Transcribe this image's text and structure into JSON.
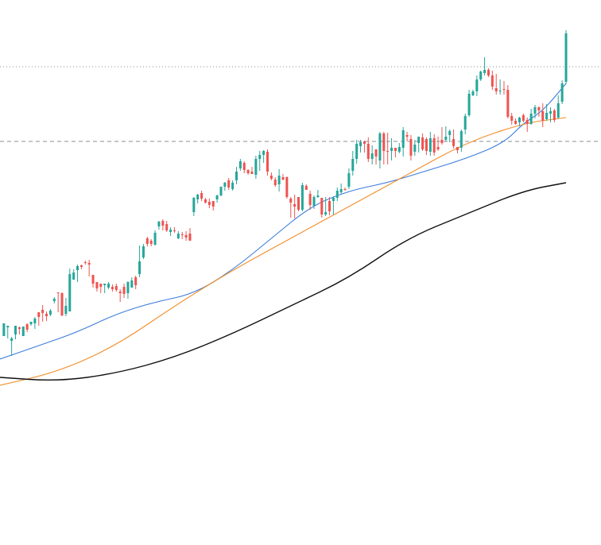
{
  "chart_data": {
    "type": "candlestick",
    "title": "",
    "xlabel": "",
    "ylabel": "",
    "xlim": [
      0,
      146
    ],
    "ylim": [
      0,
      686
    ],
    "grid": false,
    "candles": [
      [
        1,
        423,
        407,
        423,
        411
      ],
      [
        2,
        412,
        410,
        426,
        410
      ],
      [
        3,
        429,
        426,
        448,
        424
      ],
      [
        4,
        421,
        410,
        427,
        410
      ],
      [
        5,
        412,
        414,
        421,
        411
      ],
      [
        6,
        423,
        411,
        423,
        411
      ],
      [
        7,
        408,
        415,
        418,
        407
      ],
      [
        8,
        408,
        405,
        410,
        405
      ],
      [
        9,
        407,
        401,
        414,
        399
      ],
      [
        10,
        393,
        399,
        410,
        393
      ],
      [
        11,
        390,
        394,
        405,
        384
      ],
      [
        12,
        395,
        398,
        404,
        392
      ],
      [
        13,
        396,
        391,
        398,
        389
      ],
      [
        14,
        379,
        376,
        382,
        374
      ],
      [
        15,
        368,
        368,
        393,
        368
      ],
      [
        16,
        369,
        397,
        398,
        368
      ],
      [
        17,
        395,
        385,
        398,
        375
      ],
      [
        18,
        392,
        345,
        392,
        338
      ],
      [
        19,
        352,
        343,
        352,
        339
      ],
      [
        20,
        340,
        335,
        355,
        333
      ],
      [
        21,
        334,
        336,
        339,
        333
      ],
      [
        22,
        330,
        331,
        333,
        328
      ],
      [
        23,
        331,
        333,
        348,
        327
      ],
      [
        24,
        346,
        357,
        362,
        346
      ],
      [
        25,
        355,
        363,
        367,
        355
      ],
      [
        26,
        357,
        361,
        369,
        357
      ],
      [
        27,
        359,
        357,
        369,
        357
      ],
      [
        28,
        362,
        357,
        364,
        355
      ],
      [
        29,
        361,
        364,
        367,
        358
      ],
      [
        30,
        360,
        365,
        367,
        357
      ],
      [
        31,
        367,
        369,
        380,
        364
      ],
      [
        32,
        361,
        370,
        375,
        357
      ],
      [
        33,
        369,
        355,
        376,
        354
      ],
      [
        34,
        362,
        353,
        362,
        349
      ],
      [
        35,
        349,
        359,
        364,
        347
      ],
      [
        36,
        345,
        329,
        349,
        309
      ],
      [
        37,
        324,
        310,
        326,
        307
      ],
      [
        38,
        300,
        307,
        310,
        298
      ],
      [
        39,
        303,
        307,
        310,
        301
      ],
      [
        40,
        308,
        293,
        309,
        290
      ],
      [
        41,
        285,
        279,
        289,
        278
      ],
      [
        42,
        278,
        284,
        290,
        276
      ],
      [
        43,
        282,
        290,
        292,
        278
      ],
      [
        44,
        292,
        289,
        297,
        286
      ],
      [
        45,
        290,
        290,
        293,
        286
      ],
      [
        46,
        300,
        294,
        301,
        291
      ],
      [
        47,
        295,
        296,
        301,
        292
      ],
      [
        48,
        296,
        299,
        303,
        291
      ],
      [
        49,
        294,
        303,
        303,
        287
      ],
      [
        50,
        267,
        249,
        272,
        248
      ],
      [
        51,
        251,
        245,
        256,
        244
      ],
      [
        52,
        243,
        250,
        253,
        240
      ],
      [
        53,
        251,
        255,
        256,
        249
      ],
      [
        54,
        254,
        258,
        262,
        250
      ],
      [
        55,
        253,
        260,
        265,
        253
      ],
      [
        56,
        251,
        246,
        255,
        245
      ],
      [
        57,
        246,
        235,
        247,
        235
      ],
      [
        58,
        235,
        230,
        240,
        229
      ],
      [
        59,
        227,
        236,
        239,
        224
      ],
      [
        60,
        238,
        230,
        240,
        227
      ],
      [
        61,
        227,
        216,
        232,
        210
      ],
      [
        62,
        212,
        203,
        215,
        200
      ],
      [
        63,
        205,
        214,
        218,
        203
      ],
      [
        64,
        214,
        218,
        220,
        213
      ],
      [
        65,
        216,
        219,
        219,
        210
      ],
      [
        66,
        220,
        200,
        225,
        196
      ],
      [
        67,
        200,
        195,
        215,
        190
      ],
      [
        68,
        195,
        190,
        205,
        189
      ],
      [
        69,
        191,
        216,
        221,
        188
      ],
      [
        70,
        221,
        225,
        227,
        217
      ],
      [
        71,
        226,
        233,
        235,
        223
      ],
      [
        72,
        232,
        221,
        241,
        213
      ],
      [
        73,
        223,
        226,
        227,
        219
      ],
      [
        74,
        223,
        248,
        250,
        222
      ],
      [
        75,
        250,
        255,
        274,
        248
      ],
      [
        76,
        257,
        260,
        275,
        245
      ],
      [
        77,
        248,
        264,
        266,
        248
      ],
      [
        78,
        264,
        233,
        266,
        230
      ],
      [
        79,
        234,
        239,
        238,
        232
      ],
      [
        80,
        244,
        258,
        264,
        240
      ],
      [
        81,
        259,
        248,
        263,
        246
      ],
      [
        82,
        248,
        246,
        249,
        239
      ],
      [
        83,
        249,
        270,
        274,
        249
      ],
      [
        84,
        270,
        267,
        272,
        248
      ],
      [
        85,
        253,
        266,
        271,
        248
      ],
      [
        86,
        253,
        249,
        270,
        247
      ],
      [
        87,
        249,
        240,
        253,
        236
      ],
      [
        88,
        242,
        238,
        244,
        231
      ],
      [
        89,
        238,
        238,
        240,
        236
      ],
      [
        90,
        235,
        218,
        238,
        212
      ],
      [
        91,
        215,
        200,
        221,
        190
      ],
      [
        92,
        200,
        181,
        206,
        176
      ],
      [
        93,
        184,
        179,
        192,
        176
      ],
      [
        94,
        178,
        181,
        192,
        177
      ],
      [
        95,
        181,
        200,
        204,
        173
      ],
      [
        96,
        200,
        193,
        207,
        183
      ],
      [
        97,
        188,
        197,
        207,
        188
      ],
      [
        98,
        202,
        168,
        212,
        166
      ],
      [
        99,
        168,
        190,
        207,
        166
      ],
      [
        100,
        190,
        190,
        207,
        167
      ],
      [
        101,
        190,
        186,
        202,
        174
      ],
      [
        102,
        186,
        190,
        198,
        186
      ],
      [
        103,
        191,
        185,
        193,
        180
      ],
      [
        104,
        186,
        164,
        197,
        160
      ],
      [
        105,
        170,
        172,
        178,
        166
      ],
      [
        106,
        175,
        196,
        202,
        170
      ],
      [
        107,
        191,
        182,
        196,
        176
      ],
      [
        108,
        180,
        172,
        192,
        172
      ],
      [
        109,
        173,
        188,
        190,
        168
      ],
      [
        110,
        175,
        190,
        195,
        173
      ],
      [
        111,
        191,
        174,
        196,
        166
      ],
      [
        112,
        174,
        192,
        196,
        169
      ],
      [
        113,
        185,
        188,
        190,
        172
      ],
      [
        114,
        176,
        180,
        182,
        160
      ],
      [
        115,
        176,
        172,
        178,
        159
      ],
      [
        116,
        170,
        165,
        179,
        163
      ],
      [
        117,
        175,
        184,
        187,
        163
      ],
      [
        118,
        185,
        189,
        193,
        186
      ],
      [
        119,
        186,
        165,
        191,
        163
      ],
      [
        120,
        163,
        146,
        169,
        143
      ],
      [
        121,
        145,
        118,
        147,
        113
      ],
      [
        122,
        120,
        115,
        121,
        113
      ],
      [
        123,
        115,
        100,
        121,
        95
      ],
      [
        124,
        100,
        90,
        102,
        89
      ],
      [
        125,
        92,
        88,
        95,
        72
      ],
      [
        126,
        88,
        95,
        97,
        86
      ],
      [
        127,
        95,
        109,
        113,
        89
      ],
      [
        128,
        111,
        115,
        119,
        93
      ],
      [
        129,
        115,
        114,
        119,
        100
      ],
      [
        130,
        112,
        113,
        119,
        102
      ],
      [
        131,
        113,
        147,
        149,
        107
      ],
      [
        132,
        146,
        152,
        157,
        142
      ],
      [
        133,
        152,
        156,
        157,
        149
      ],
      [
        134,
        154,
        148,
        159,
        147
      ],
      [
        135,
        145,
        152,
        154,
        143
      ],
      [
        136,
        151,
        156,
        166,
        148
      ],
      [
        137,
        156,
        143,
        157,
        137
      ],
      [
        138,
        143,
        135,
        149,
        132
      ],
      [
        139,
        135,
        139,
        147,
        134
      ],
      [
        140,
        140,
        152,
        160,
        130
      ],
      [
        141,
        150,
        142,
        152,
        131
      ],
      [
        142,
        143,
        140,
        154,
        135
      ],
      [
        143,
        139,
        151,
        154,
        137
      ],
      [
        144,
        148,
        130,
        150,
        120
      ],
      [
        145,
        128,
        105,
        131,
        101
      ],
      [
        146,
        103,
        42,
        106,
        38
      ]
    ],
    "series": [
      {
        "color": "#3b7ddd",
        "values": [
          [
            0,
            452
          ],
          [
            10,
            435
          ],
          [
            20,
            418
          ],
          [
            30,
            395
          ],
          [
            40,
            380
          ],
          [
            50,
            370
          ],
          [
            60,
            340
          ],
          [
            70,
            300
          ],
          [
            80,
            260
          ],
          [
            90,
            240
          ],
          [
            100,
            230
          ],
          [
            110,
            215
          ],
          [
            120,
            200
          ],
          [
            130,
            180
          ],
          [
            135,
            155
          ],
          [
            140,
            140
          ],
          [
            146,
            105
          ]
        ]
      },
      {
        "color": "#f28c28",
        "values": [
          [
            0,
            485
          ],
          [
            15,
            468
          ],
          [
            30,
            435
          ],
          [
            45,
            385
          ],
          [
            60,
            340
          ],
          [
            75,
            300
          ],
          [
            90,
            260
          ],
          [
            105,
            220
          ],
          [
            120,
            180
          ],
          [
            135,
            155
          ],
          [
            146,
            148
          ]
        ]
      },
      {
        "color": "#111111",
        "values": [
          [
            0,
            475
          ],
          [
            15,
            480
          ],
          [
            30,
            470
          ],
          [
            45,
            450
          ],
          [
            60,
            420
          ],
          [
            75,
            385
          ],
          [
            90,
            350
          ],
          [
            105,
            300
          ],
          [
            120,
            270
          ],
          [
            135,
            240
          ],
          [
            146,
            230
          ]
        ]
      }
    ],
    "reference_lines": [
      {
        "style": "dotted",
        "y": 84
      },
      {
        "style": "dashed",
        "y": 178
      }
    ],
    "colors": {
      "up": "#26a69a",
      "down": "#ef5350",
      "wick": "#333333",
      "background": "#ffffff"
    }
  }
}
